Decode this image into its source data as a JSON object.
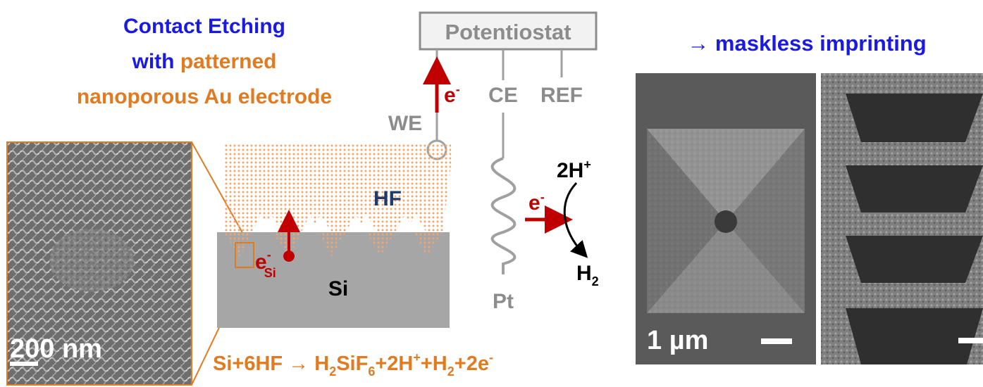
{
  "title": {
    "line1": "Contact Etching",
    "line2_prefix": "with ",
    "line2_highlight": "patterned",
    "line3": "nanoporous Au electrode"
  },
  "right_title": "→ maskless imprinting",
  "potentiostat": "Potentiostat",
  "electrodes": {
    "we": "WE",
    "ce": "CE",
    "ref": "REF",
    "pt": "Pt"
  },
  "electron": {
    "base": "e",
    "sup": "-",
    "sub_si": "Si"
  },
  "labels": {
    "hf": "HF",
    "si": "Si"
  },
  "cathode": {
    "h_plus": "2H",
    "h_plus_sup": "+",
    "h2": "H",
    "h2_sub": "2"
  },
  "reaction": {
    "p1": "Si+6HF → H",
    "s1": "2",
    "p2": "SiF",
    "s2": "6",
    "p3": "+2H",
    "s3": "+",
    "p4": "+H",
    "s4": "2",
    "p5": "+2e",
    "s5": "-"
  },
  "scale_bars": {
    "left": "200 nm",
    "right": "1 µm"
  },
  "colors": {
    "blue": "#1a1ae0",
    "orange": "#e07b22",
    "dark_red": "#c00000",
    "gray": "#8c8c8c",
    "navy": "#1f3a6e",
    "si_gray": "#a6a6a6"
  }
}
